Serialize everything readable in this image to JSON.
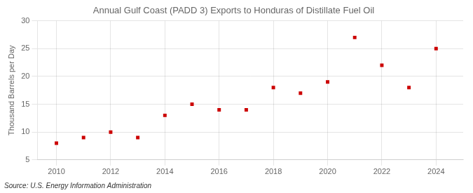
{
  "chart_data": {
    "type": "scatter",
    "title": "Annual Gulf Coast (PADD 3) Exports to Honduras of Distillate Fuel Oil",
    "ylabel": "Thousand Barrels per Day",
    "annotations": [
      "Source: U.S. Energy Information Administration"
    ],
    "x": [
      2010,
      2011,
      2012,
      2013,
      2014,
      2015,
      2016,
      2017,
      2018,
      2019,
      2020,
      2021,
      2022,
      2023,
      2024
    ],
    "values": [
      8.0,
      9.0,
      10.0,
      9.0,
      13.0,
      15.0,
      14.0,
      14.0,
      18.0,
      17.0,
      19.0,
      27.0,
      22.0,
      18.0,
      25.0
    ],
    "color": "#cc0000",
    "marker": "square",
    "xlim": [
      2009.3,
      2025.0
    ],
    "xticks": [
      2010,
      2012,
      2014,
      2016,
      2018,
      2020,
      2022,
      2024
    ],
    "ylim": [
      5,
      30
    ],
    "yticks": [
      5,
      10,
      15,
      20,
      25,
      30
    ],
    "grid": true
  }
}
